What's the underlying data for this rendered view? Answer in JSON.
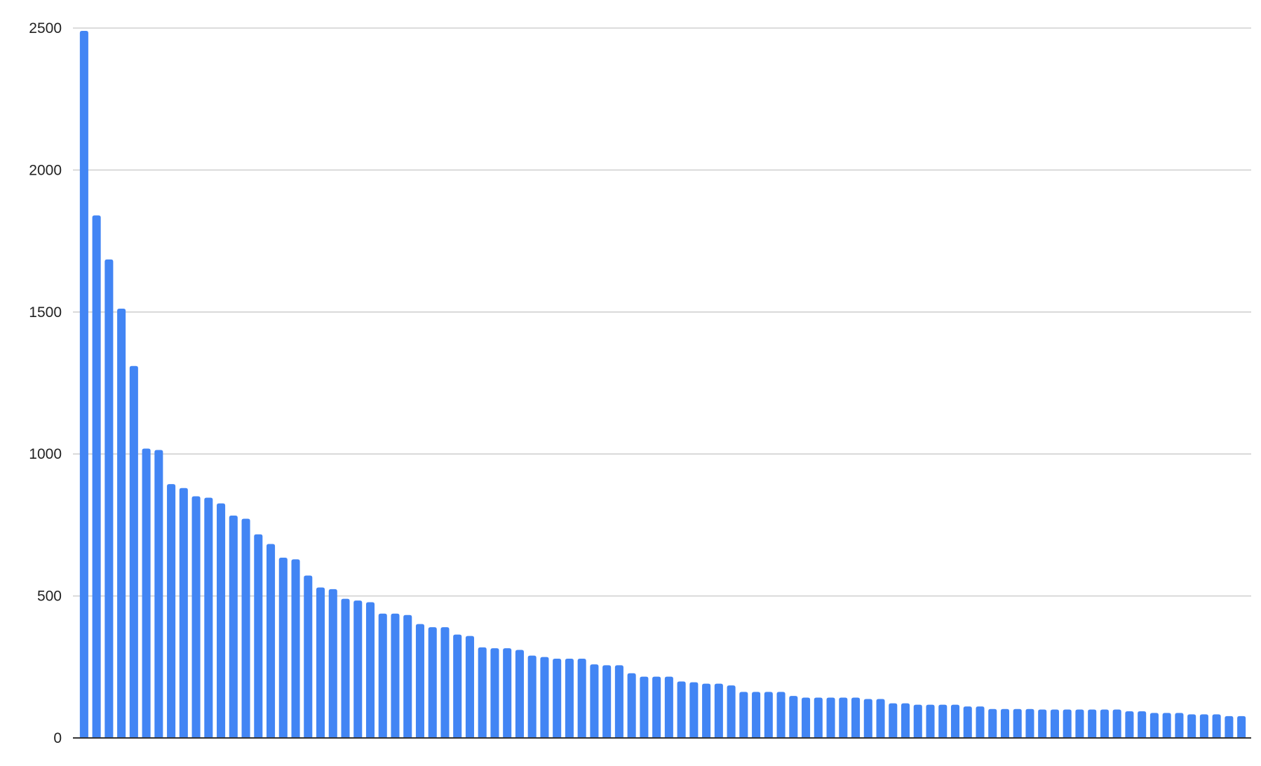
{
  "chart_data": {
    "type": "bar",
    "title": "",
    "xlabel": "",
    "ylabel": "",
    "ylim": [
      0,
      2500
    ],
    "yticks": [
      "0",
      "500",
      "1000",
      "1500",
      "2000",
      "2500"
    ],
    "grid": true,
    "legend": "none",
    "bar_color": "#4285f4",
    "values": [
      2490,
      1840,
      1685,
      1512,
      1310,
      1019,
      1014,
      894,
      880,
      851,
      846,
      826,
      783,
      772,
      717,
      683,
      635,
      629,
      572,
      530,
      524,
      490,
      484,
      478,
      438,
      438,
      433,
      401,
      390,
      390,
      364,
      359,
      319,
      316,
      316,
      310,
      290,
      285,
      279,
      279,
      279,
      259,
      256,
      256,
      228,
      216,
      216,
      216,
      199,
      196,
      191,
      191,
      185,
      162,
      162,
      162,
      162,
      148,
      142,
      142,
      142,
      142,
      142,
      137,
      137,
      122,
      122,
      117,
      117,
      117,
      117,
      111,
      111,
      102,
      102,
      102,
      102,
      100,
      100,
      100,
      100,
      100,
      100,
      100,
      94,
      94,
      88,
      88,
      88,
      83,
      83,
      83,
      77,
      77
    ]
  }
}
